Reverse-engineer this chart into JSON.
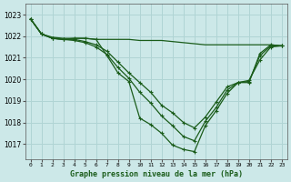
{
  "title": "Graphe pression niveau de la mer (hPa)",
  "bg_color": "#cce8e8",
  "grid_color": "#b0d4d4",
  "line_color": "#1a5c1a",
  "xlim": [
    -0.5,
    23.5
  ],
  "ylim": [
    1016.3,
    1023.5
  ],
  "yticks": [
    1017,
    1018,
    1019,
    1020,
    1021,
    1022,
    1023
  ],
  "xticks": [
    0,
    1,
    2,
    3,
    4,
    5,
    6,
    7,
    8,
    9,
    10,
    11,
    12,
    13,
    14,
    15,
    16,
    17,
    18,
    19,
    20,
    21,
    22,
    23
  ],
  "series": [
    {
      "x": [
        0,
        1,
        2,
        3,
        4,
        5,
        6,
        7,
        8,
        9,
        10,
        11,
        12,
        13,
        14,
        15,
        16,
        17,
        18,
        19,
        20,
        21,
        22,
        23
      ],
      "y": [
        1022.8,
        1022.1,
        1021.9,
        1021.85,
        1021.9,
        1021.9,
        1021.85,
        1021.1,
        1020.3,
        1019.9,
        1018.2,
        1017.9,
        1017.5,
        1016.95,
        1016.75,
        1016.65,
        1017.85,
        1018.55,
        1019.35,
        1019.85,
        1019.85,
        1021.2,
        1021.6,
        1021.55
      ],
      "markers": true
    },
    {
      "x": [
        0,
        1,
        2,
        3,
        4,
        5,
        6,
        7,
        8,
        9,
        10,
        11,
        12,
        13,
        14,
        15,
        16,
        17,
        18,
        19,
        20,
        21,
        22,
        23
      ],
      "y": [
        1022.8,
        1022.1,
        1021.95,
        1021.9,
        1021.9,
        1021.9,
        1021.85,
        1021.85,
        1021.85,
        1021.85,
        1021.8,
        1021.8,
        1021.8,
        1021.75,
        1021.7,
        1021.65,
        1021.6,
        1021.6,
        1021.6,
        1021.6,
        1021.6,
        1021.6,
        1021.6,
        1021.55
      ],
      "markers": false
    },
    {
      "x": [
        0,
        1,
        2,
        3,
        4,
        5,
        6,
        7,
        8,
        9,
        10,
        11,
        12,
        13,
        14,
        15,
        16,
        17,
        18,
        19,
        20,
        21,
        22,
        23
      ],
      "y": [
        1022.8,
        1022.1,
        1021.9,
        1021.85,
        1021.85,
        1021.75,
        1021.6,
        1021.3,
        1020.8,
        1020.3,
        1019.85,
        1019.4,
        1018.8,
        1018.45,
        1018.0,
        1017.75,
        1018.25,
        1018.95,
        1019.65,
        1019.85,
        1019.95,
        1020.9,
        1021.5,
        1021.55
      ],
      "markers": true
    },
    {
      "x": [
        0,
        1,
        2,
        3,
        4,
        5,
        6,
        7,
        8,
        9,
        10,
        11,
        12,
        13,
        14,
        15,
        16,
        17,
        18,
        19,
        20,
        21,
        22,
        23
      ],
      "y": [
        1022.8,
        1022.1,
        1021.9,
        1021.85,
        1021.8,
        1021.7,
        1021.5,
        1021.15,
        1020.55,
        1020.05,
        1019.4,
        1018.9,
        1018.3,
        1017.85,
        1017.35,
        1017.15,
        1018.05,
        1018.7,
        1019.5,
        1019.85,
        1019.9,
        1021.1,
        1021.55,
        1021.55
      ],
      "markers": true
    }
  ]
}
